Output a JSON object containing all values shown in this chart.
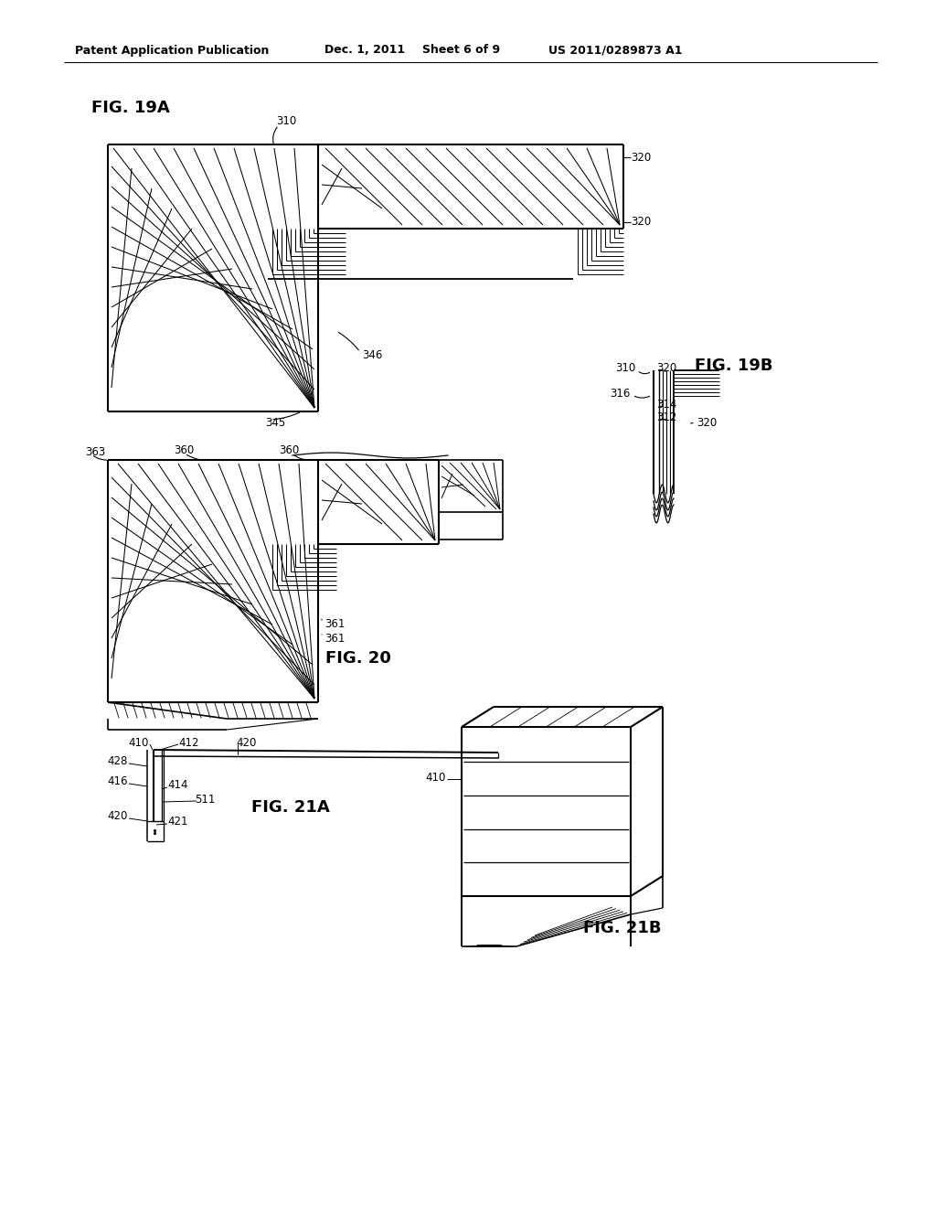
{
  "bg_color": "#ffffff",
  "header_left": "Patent Application Publication",
  "header_mid1": "Dec. 1, 2011",
  "header_mid2": "Sheet 6 of 9",
  "header_right": "US 2011/0289873 A1",
  "fig19a": "FIG. 19A",
  "fig19b": "FIG. 19B",
  "fig20": "FIG. 20",
  "fig21a": "FIG. 21A",
  "fig21b": "FIG. 21B"
}
